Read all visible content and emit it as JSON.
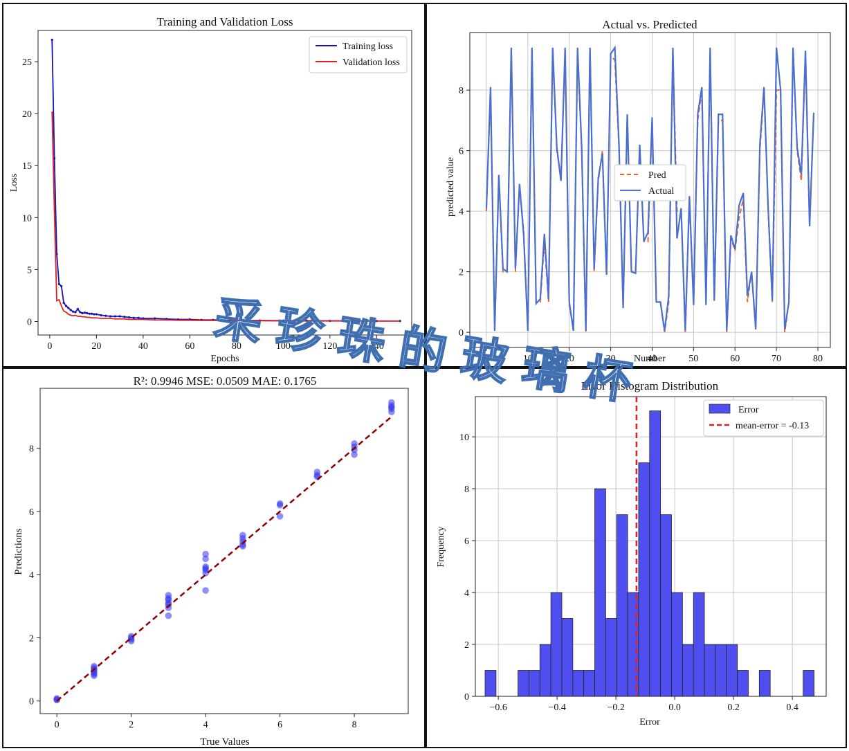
{
  "colors": {
    "train": "#1414b4",
    "val": "#e02020",
    "pred": "#e8642a",
    "actual": "#4a6fd0",
    "scatter": "#3333ee",
    "fit": "#8b0000",
    "hist": "#4f4fef",
    "mean": "#e02020",
    "grid": "#c8c8c8"
  },
  "watermark": {
    "text": "采珍珠的玻璃杯",
    "color": "#3f6fb0"
  },
  "chart_data": [
    {
      "type": "line",
      "title": "Training and Validation Loss",
      "xlabel": "Epochs",
      "ylabel": "Loss",
      "xlim": [
        -5,
        155
      ],
      "ylim": [
        -1.3,
        28
      ],
      "xticks": [
        0,
        20,
        40,
        60,
        80,
        100,
        120,
        140
      ],
      "yticks": [
        0,
        5,
        10,
        15,
        20,
        25
      ],
      "grid": false,
      "legend": "top-right",
      "series": [
        {
          "name": "Training loss",
          "x": [
            1,
            2,
            3,
            4,
            5,
            6,
            7,
            8,
            9,
            10,
            11,
            12,
            13,
            14,
            15,
            16,
            17,
            18,
            19,
            20,
            22,
            24,
            26,
            28,
            30,
            32,
            34,
            36,
            38,
            40,
            45,
            50,
            55,
            60,
            65,
            70,
            75,
            80,
            90,
            100,
            110,
            120,
            130,
            140,
            150
          ],
          "values": [
            27.1,
            15.7,
            6.5,
            3.6,
            3.4,
            1.8,
            1.5,
            1.3,
            1.1,
            0.95,
            0.9,
            1.2,
            0.9,
            0.8,
            0.85,
            0.8,
            0.75,
            0.75,
            0.7,
            0.7,
            0.6,
            0.55,
            0.5,
            0.5,
            0.5,
            0.45,
            0.4,
            0.35,
            0.35,
            0.3,
            0.3,
            0.25,
            0.2,
            0.2,
            0.15,
            0.15,
            0.12,
            0.1,
            0.1,
            0.08,
            0.08,
            0.06,
            0.06,
            0.05,
            0.05
          ]
        },
        {
          "name": "Validation loss",
          "x": [
            1,
            2,
            3,
            4,
            5,
            6,
            7,
            8,
            9,
            10,
            11,
            12,
            13,
            14,
            15,
            16,
            17,
            18,
            19,
            20,
            22,
            24,
            26,
            28,
            30,
            32,
            34,
            36,
            38,
            40,
            45,
            50,
            55,
            60,
            65,
            70,
            75,
            80,
            90,
            100,
            110,
            120,
            130,
            140,
            150
          ],
          "values": [
            20.2,
            10.5,
            2.0,
            2.1,
            1.5,
            1.0,
            0.9,
            0.7,
            0.6,
            0.55,
            0.6,
            0.5,
            0.5,
            0.45,
            0.45,
            0.4,
            0.4,
            0.35,
            0.35,
            0.35,
            0.3,
            0.3,
            0.3,
            0.25,
            0.25,
            0.25,
            0.2,
            0.2,
            0.2,
            0.2,
            0.15,
            0.15,
            0.12,
            0.12,
            0.1,
            0.1,
            0.08,
            0.08,
            0.07,
            0.06,
            0.05,
            0.05,
            0.05,
            0.04,
            0.04
          ]
        }
      ]
    },
    {
      "type": "line",
      "title": "Actual vs. Predicted",
      "xlabel": "Number",
      "ylabel": "predicted value",
      "xlim": [
        -4,
        83
      ],
      "ylim": [
        -0.5,
        9.9
      ],
      "xticks": [
        0,
        10,
        20,
        30,
        40,
        50,
        60,
        70,
        80
      ],
      "yticks": [
        0,
        2,
        4,
        6,
        8
      ],
      "grid": true,
      "legend": "center",
      "series": [
        {
          "name": "Pred",
          "values": [
            4.0,
            8.0,
            0.1,
            5.1,
            2.0,
            2.0,
            9.3,
            2.0,
            4.9,
            3.3,
            0.1,
            9.3,
            1.0,
            1.0,
            3.0,
            1.0,
            9.2,
            6.0,
            5.1,
            9.3,
            0.9,
            0.1,
            9.3,
            6.0,
            0.0,
            9.4,
            2.0,
            5.0,
            6.0,
            1.9,
            9.1,
            9.0,
            6.1,
            0.8,
            7.1,
            2.0,
            2.0,
            6.1,
            3.0,
            3.0,
            7.0,
            1.0,
            1.0,
            0.0,
            1.0,
            9.3,
            4.0,
            4.0,
            0.0,
            4.4,
            1.0,
            7.0,
            8.0,
            1.0,
            9.3,
            1.0,
            7.0,
            7.0,
            0.0,
            3.1,
            2.7,
            3.8,
            4.4,
            1.0,
            2.0,
            0.1,
            6.0,
            8.0,
            4.0,
            1.0,
            8.0,
            8.0,
            0.0,
            1.0,
            9.3,
            6.0,
            5.0,
            9.2,
            3.5,
            7.2
          ]
        },
        {
          "name": "Actual",
          "values": [
            4.1,
            8.1,
            0.05,
            5.2,
            2.1,
            2.0,
            9.4,
            2.1,
            4.9,
            3.2,
            0.05,
            9.4,
            0.95,
            1.1,
            3.25,
            1.1,
            9.4,
            6.1,
            5.0,
            9.4,
            1.0,
            0.05,
            9.4,
            6.1,
            0.05,
            9.4,
            2.1,
            5.1,
            5.9,
            1.9,
            9.2,
            9.4,
            6.2,
            0.8,
            7.2,
            2.0,
            1.95,
            6.2,
            3.0,
            3.3,
            7.1,
            1.0,
            1.0,
            0.05,
            1.2,
            9.4,
            3.1,
            4.1,
            0.05,
            4.5,
            0.9,
            7.2,
            8.1,
            0.9,
            9.4,
            1.05,
            7.2,
            7.2,
            0.05,
            3.2,
            2.75,
            4.2,
            4.6,
            1.2,
            2.0,
            0.1,
            6.2,
            8.1,
            4.1,
            1.05,
            9.4,
            8.0,
            0.1,
            1.0,
            9.4,
            6.1,
            5.2,
            9.3,
            3.5,
            7.25
          ]
        }
      ]
    },
    {
      "type": "scatter",
      "title": "R²: 0.9946  MSE: 0.0509  MAE: 0.1765",
      "xlabel": "True Values",
      "ylabel": "Predictions",
      "xlim": [
        -0.45,
        9.45
      ],
      "ylim": [
        -0.4,
        9.9
      ],
      "xticks": [
        0,
        2,
        4,
        6,
        8
      ],
      "yticks": [
        0,
        2,
        4,
        6,
        8
      ],
      "grid": false,
      "fit_line": {
        "x": [
          0,
          9
        ],
        "y": [
          0,
          9
        ]
      },
      "points": {
        "x": [
          0,
          0,
          0,
          1,
          1,
          1,
          1,
          1,
          1,
          1,
          2,
          2,
          2,
          2,
          3,
          3,
          3,
          3,
          3,
          3,
          3,
          4,
          4,
          4,
          4,
          4,
          4,
          4,
          5,
          5,
          5,
          5,
          5,
          6,
          6,
          6,
          7,
          7,
          7,
          8,
          8,
          8,
          8,
          9,
          9,
          9,
          9,
          9
        ],
        "y": [
          0.05,
          0.08,
          0.03,
          1.1,
          1.0,
          0.95,
          0.9,
          0.85,
          0.8,
          1.05,
          2.05,
          2.0,
          1.95,
          1.9,
          3.35,
          3.2,
          3.1,
          3.05,
          2.95,
          2.7,
          3.25,
          4.65,
          4.5,
          4.25,
          4.15,
          4.2,
          4.05,
          3.5,
          5.25,
          5.15,
          5.05,
          4.95,
          4.9,
          6.25,
          6.2,
          5.85,
          7.25,
          7.15,
          7.1,
          8.15,
          8.05,
          7.95,
          7.8,
          9.45,
          9.35,
          9.3,
          9.25,
          9.15
        ]
      }
    },
    {
      "type": "bar",
      "title": "Error Histogram Distribution",
      "xlabel": "Error",
      "ylabel": "Frequency",
      "xlim": [
        -0.678,
        0.515
      ],
      "ylim": [
        0,
        11.55
      ],
      "xticks": [
        -0.6,
        -0.4,
        -0.2,
        0.0,
        0.2,
        0.4
      ],
      "xtick_labels": [
        "−0.6",
        "−0.4",
        "−0.2",
        "0.0",
        "0.2",
        "0.4"
      ],
      "yticks": [
        0,
        2,
        4,
        6,
        8,
        10
      ],
      "grid": true,
      "legend": "top-right",
      "bin_start": -0.645,
      "bin_width": 0.0373,
      "counts": [
        1,
        0,
        0,
        1,
        1,
        2,
        4,
        3,
        1,
        1,
        8,
        3,
        7,
        4,
        9,
        11,
        7,
        4,
        2,
        4,
        2,
        2,
        2,
        1,
        0,
        1,
        0,
        0,
        0,
        1
      ],
      "series": [
        {
          "name": "Error"
        }
      ],
      "mean_error": -0.13,
      "mean_label": "mean-error = -0.13"
    }
  ]
}
